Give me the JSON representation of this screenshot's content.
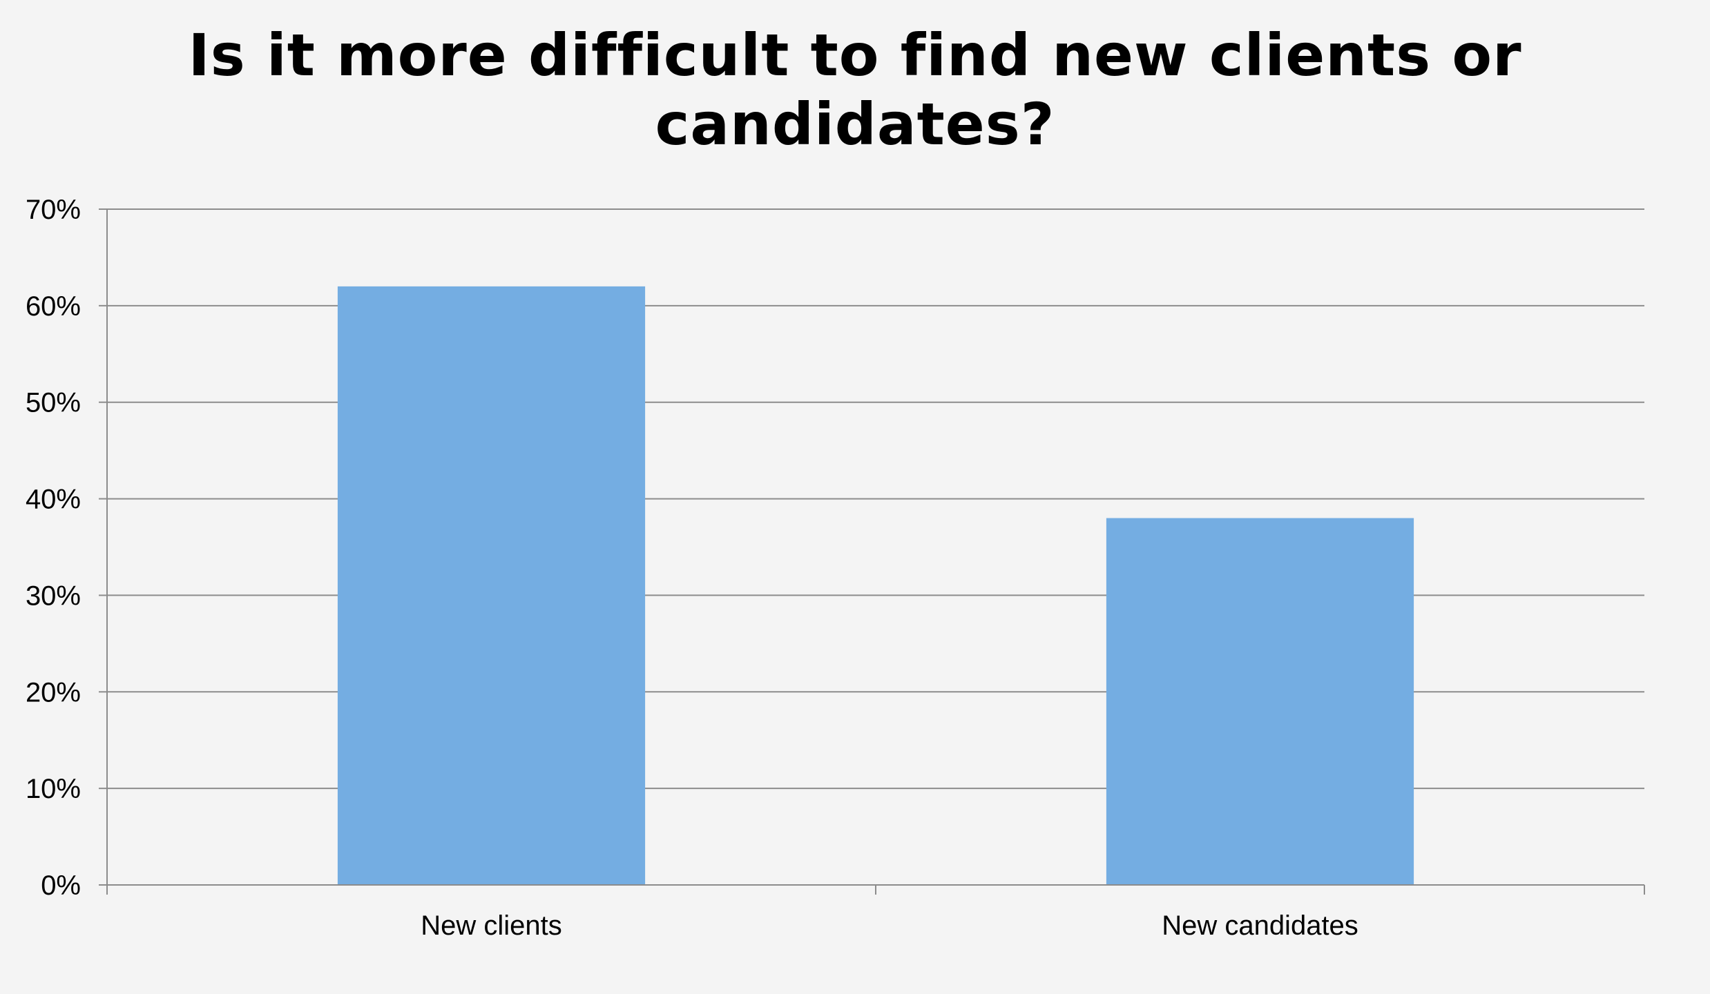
{
  "chart_data": {
    "type": "bar",
    "title_lines": [
      "Is it more difficult to find new clients or",
      "candidates?"
    ],
    "categories": [
      "New clients",
      "New candidates"
    ],
    "values": [
      62,
      38
    ],
    "value_unit": "%",
    "ylim": [
      0,
      70
    ],
    "yticks": [
      0,
      10,
      20,
      30,
      40,
      50,
      60,
      70
    ],
    "ytick_labels": [
      "0%",
      "10%",
      "20%",
      "30%",
      "40%",
      "50%",
      "60%",
      "70%"
    ],
    "xlabel": "",
    "ylabel": "",
    "grid": true,
    "legend": "none",
    "colors": {
      "bar": "#74ade2",
      "gridline": "#8c8c8c",
      "axis": "#8c8c8c",
      "background": "#f4f4f4"
    }
  }
}
